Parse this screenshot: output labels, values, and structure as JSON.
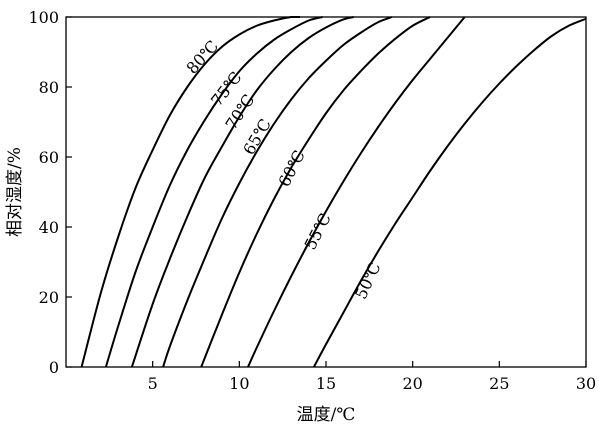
{
  "chart_data": {
    "type": "line",
    "title": "",
    "xlabel": "温度/℃",
    "ylabel": "相对湿度/%",
    "xlim": [
      0,
      30
    ],
    "ylim": [
      0,
      100
    ],
    "xticks": [
      5,
      10,
      15,
      20,
      25,
      30
    ],
    "yticks": [
      0,
      20,
      40,
      60,
      80,
      100
    ],
    "grid": false,
    "legend": "inline labels",
    "series": [
      {
        "name": "80℃",
        "x": [
          0.9,
          2,
          3,
          4,
          5,
          6,
          7,
          8,
          9,
          10,
          11,
          12,
          13,
          13.5
        ],
        "y": [
          0,
          21,
          37,
          51,
          62,
          72,
          80,
          86.5,
          91.5,
          95,
          97.5,
          99,
          100,
          100
        ]
      },
      {
        "name": "75℃",
        "x": [
          2.3,
          3,
          4,
          5,
          6,
          7,
          8,
          9,
          10,
          11,
          12,
          13,
          14,
          14.8
        ],
        "y": [
          0,
          11.5,
          27,
          40,
          52,
          62,
          70.5,
          78,
          84.5,
          89.5,
          93.5,
          96.5,
          99,
          100
        ]
      },
      {
        "name": "70℃",
        "x": [
          3.8,
          5,
          6,
          7,
          8,
          9,
          10,
          11,
          12,
          13,
          14,
          15,
          16,
          16.6
        ],
        "y": [
          0,
          18,
          31,
          43,
          54,
          63,
          71.5,
          79,
          85,
          90,
          94,
          97,
          99.3,
          100
        ]
      },
      {
        "name": "65℃",
        "x": [
          5.6,
          6,
          7,
          8,
          9,
          10,
          11,
          12,
          13,
          14,
          15,
          16,
          17,
          18,
          18.8
        ],
        "y": [
          0,
          6,
          19,
          31,
          42.5,
          52.5,
          61.5,
          69.5,
          76.5,
          82.5,
          87.5,
          92,
          95.5,
          98.5,
          100
        ]
      },
      {
        "name": "60℃",
        "x": [
          7.8,
          9,
          10,
          11,
          12,
          13,
          14,
          15,
          16,
          17,
          18,
          19,
          20,
          21
        ],
        "y": [
          0,
          15,
          27,
          38,
          48,
          57,
          65,
          72.5,
          79,
          84.5,
          89.5,
          93.8,
          97.5,
          100
        ]
      },
      {
        "name": "55℃",
        "x": [
          10.5,
          11,
          12,
          13,
          14,
          15,
          16,
          17,
          18,
          19,
          20,
          21,
          22,
          23
        ],
        "y": [
          0,
          5.5,
          16,
          26,
          35.5,
          44.5,
          53,
          61,
          68.5,
          75.5,
          82,
          88,
          94,
          100
        ]
      },
      {
        "name": "50℃",
        "x": [
          14.3,
          15,
          16,
          17,
          18,
          19,
          20,
          21,
          22,
          23,
          24,
          25,
          26,
          27,
          28,
          29,
          30
        ],
        "y": [
          0,
          6.5,
          15.5,
          24.5,
          33,
          41,
          48.5,
          56,
          63,
          69.5,
          75.5,
          81,
          86,
          90.5,
          94.5,
          97.5,
          99.5
        ]
      }
    ]
  }
}
